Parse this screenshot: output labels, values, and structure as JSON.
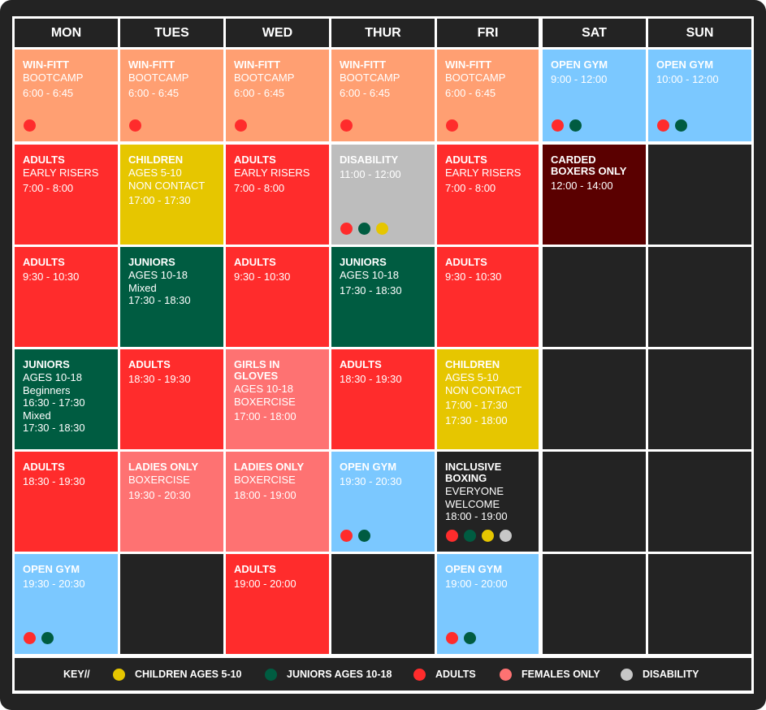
{
  "days": [
    "MON",
    "TUES",
    "WED",
    "THUR",
    "FRI",
    "SAT",
    "SUN"
  ],
  "colors": {
    "bootcamp": "#ff9f72",
    "adults": "#ff2c2c",
    "children": "#e6c600",
    "juniors": "#005c41",
    "females": "#fe7272",
    "disability": "#bdbdbd",
    "open_gym": "#7bc8ff",
    "carded": "#5a0000",
    "inclusive": "#232323",
    "empty": "#232323"
  },
  "dot_colors": {
    "children": "#e6c600",
    "juniors": "#005c41",
    "adults": "#ff2c2c",
    "females": "#fe7272",
    "disability": "#c7c7c7"
  },
  "key": {
    "label": "KEY//",
    "items": [
      {
        "dot": "children",
        "label": "CHILDREN AGES 5-10"
      },
      {
        "dot": "juniors",
        "label": "JUNIORS AGES 10-18"
      },
      {
        "dot": "adults",
        "label": "ADULTS"
      },
      {
        "dot": "females",
        "label": "FEMALES ONLY"
      },
      {
        "dot": "disability",
        "label": "DISABILITY"
      }
    ]
  },
  "rows": [
    [
      {
        "type": "bootcamp",
        "title": [
          "WIN-FITT"
        ],
        "lines": [
          "BOOTCAMP"
        ],
        "times": [
          "6:00 - 6:45"
        ],
        "dots": [
          "adults"
        ]
      },
      {
        "type": "bootcamp",
        "title": [
          "WIN-FITT"
        ],
        "lines": [
          "BOOTCAMP"
        ],
        "times": [
          "6:00 - 6:45"
        ],
        "dots": [
          "adults"
        ]
      },
      {
        "type": "bootcamp",
        "title": [
          "WIN-FITT"
        ],
        "lines": [
          "BOOTCAMP"
        ],
        "times": [
          "6:00 - 6:45"
        ],
        "dots": [
          "adults"
        ]
      },
      {
        "type": "bootcamp",
        "title": [
          "WIN-FITT"
        ],
        "lines": [
          "BOOTCAMP"
        ],
        "times": [
          "6:00 - 6:45"
        ],
        "dots": [
          "adults"
        ]
      },
      {
        "type": "bootcamp",
        "title": [
          "WIN-FITT"
        ],
        "lines": [
          "BOOTCAMP"
        ],
        "times": [
          "6:00 - 6:45"
        ],
        "dots": [
          "adults"
        ]
      },
      {
        "type": "open_gym",
        "title": [
          "OPEN GYM"
        ],
        "lines": [],
        "times": [
          "9:00 - 12:00"
        ],
        "dots": [
          "adults",
          "juniors"
        ]
      },
      {
        "type": "open_gym",
        "title": [
          "OPEN GYM"
        ],
        "lines": [],
        "times": [
          "10:00 - 12:00"
        ],
        "dots": [
          "adults",
          "juniors"
        ]
      }
    ],
    [
      {
        "type": "adults",
        "title": [
          "ADULTS"
        ],
        "lines": [
          "EARLY RISERS"
        ],
        "times": [
          "7:00 - 8:00"
        ],
        "dots": []
      },
      {
        "type": "children",
        "title": [
          "CHILDREN"
        ],
        "lines": [
          "AGES 5-10",
          "NON CONTACT"
        ],
        "times": [
          "17:00 - 17:30"
        ],
        "dots": []
      },
      {
        "type": "adults",
        "title": [
          "ADULTS"
        ],
        "lines": [
          "EARLY RISERS"
        ],
        "times": [
          "7:00 - 8:00"
        ],
        "dots": []
      },
      {
        "type": "disability",
        "title": [
          "DISABILITY"
        ],
        "lines": [],
        "times": [
          "11:00 - 12:00"
        ],
        "dots": [
          "adults",
          "juniors",
          "children"
        ]
      },
      {
        "type": "adults",
        "title": [
          "ADULTS"
        ],
        "lines": [
          "EARLY RISERS"
        ],
        "times": [
          "7:00 - 8:00"
        ],
        "dots": []
      },
      {
        "type": "carded",
        "title": [
          "CARDED",
          "BOXERS ONLY"
        ],
        "lines": [],
        "times": [
          "12:00 - 14:00"
        ],
        "dots": []
      },
      {
        "type": "empty"
      }
    ],
    [
      {
        "type": "adults",
        "title": [
          "ADULTS"
        ],
        "lines": [],
        "times": [
          "9:30 - 10:30"
        ],
        "dots": []
      },
      {
        "type": "juniors",
        "title": [
          "JUNIORS"
        ],
        "lines": [
          "AGES 10-18",
          "Mixed",
          "17:30 - 18:30"
        ],
        "times": [],
        "dots": []
      },
      {
        "type": "adults",
        "title": [
          "ADULTS"
        ],
        "lines": [],
        "times": [
          "9:30 - 10:30"
        ],
        "dots": []
      },
      {
        "type": "juniors",
        "title": [
          "JUNIORS"
        ],
        "lines": [
          "AGES 10-18"
        ],
        "times": [
          "17:30 - 18:30"
        ],
        "dots": []
      },
      {
        "type": "adults",
        "title": [
          "ADULTS"
        ],
        "lines": [],
        "times": [
          "9:30 - 10:30"
        ],
        "dots": []
      },
      {
        "type": "empty"
      },
      {
        "type": "empty"
      }
    ],
    [
      {
        "type": "juniors",
        "title": [
          "JUNIORS"
        ],
        "lines": [
          "AGES 10-18",
          "Beginners",
          "16:30 - 17:30",
          "Mixed",
          "17:30 - 18:30"
        ],
        "times": [],
        "dots": []
      },
      {
        "type": "adults",
        "title": [
          "ADULTS"
        ],
        "lines": [],
        "times": [
          "18:30 - 19:30"
        ],
        "dots": []
      },
      {
        "type": "females",
        "title": [
          "GIRLS IN GLOVES"
        ],
        "lines": [
          "AGES 10-18",
          "BOXERCISE"
        ],
        "times": [
          "17:00 - 18:00"
        ],
        "dots": []
      },
      {
        "type": "adults",
        "title": [
          "ADULTS"
        ],
        "lines": [],
        "times": [
          "18:30 - 19:30"
        ],
        "dots": []
      },
      {
        "type": "children",
        "title": [
          "CHILDREN"
        ],
        "lines": [
          "AGES 5-10",
          "NON CONTACT"
        ],
        "times": [
          "17:00 - 17:30",
          "17:30 - 18:00"
        ],
        "dots": []
      },
      {
        "type": "empty"
      },
      {
        "type": "empty"
      }
    ],
    [
      {
        "type": "adults",
        "title": [
          "ADULTS"
        ],
        "lines": [],
        "times": [
          "18:30 - 19:30"
        ],
        "dots": []
      },
      {
        "type": "females",
        "title": [
          "LADIES ONLY"
        ],
        "lines": [
          "BOXERCISE"
        ],
        "times": [
          "19:30 - 20:30"
        ],
        "dots": []
      },
      {
        "type": "females",
        "title": [
          "LADIES ONLY"
        ],
        "lines": [
          "BOXERCISE"
        ],
        "times": [
          "18:00 - 19:00"
        ],
        "dots": []
      },
      {
        "type": "open_gym",
        "title": [
          "OPEN GYM"
        ],
        "lines": [],
        "times": [
          "19:30 - 20:30"
        ],
        "dots": [
          "adults",
          "juniors"
        ]
      },
      {
        "type": "inclusive",
        "title": [
          "INCLUSIVE",
          "BOXING"
        ],
        "lines": [
          "EVERYONE",
          "WELCOME",
          "18:00 - 19:00"
        ],
        "times": [],
        "dots": [
          "adults",
          "juniors",
          "children",
          "disability"
        ]
      },
      {
        "type": "empty"
      },
      {
        "type": "empty"
      }
    ],
    [
      {
        "type": "open_gym",
        "title": [
          "OPEN GYM"
        ],
        "lines": [],
        "times": [
          "19:30 - 20:30"
        ],
        "dots": [
          "adults",
          "juniors"
        ]
      },
      {
        "type": "empty"
      },
      {
        "type": "adults",
        "title": [
          "ADULTS"
        ],
        "lines": [],
        "times": [
          "19:00 - 20:00"
        ],
        "dots": []
      },
      {
        "type": "empty"
      },
      {
        "type": "open_gym",
        "title": [
          "OPEN GYM"
        ],
        "lines": [],
        "times": [
          "19:00 - 20:00"
        ],
        "dots": [
          "adults",
          "juniors"
        ]
      },
      {
        "type": "empty"
      },
      {
        "type": "empty"
      }
    ]
  ]
}
